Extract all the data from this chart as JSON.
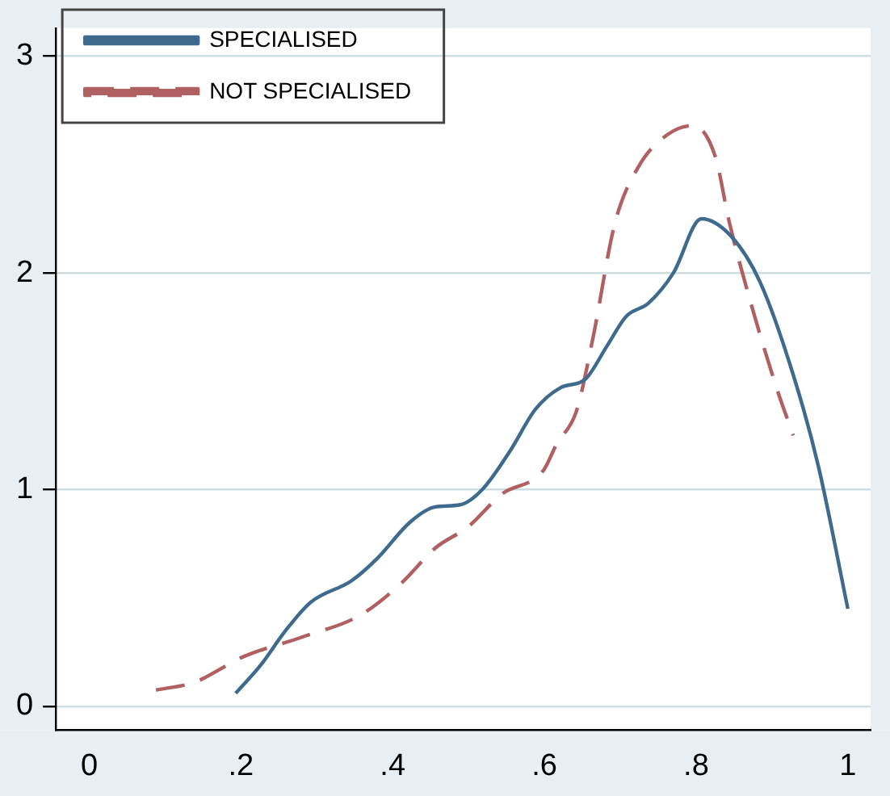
{
  "chart_data": {
    "type": "line",
    "xlim": [
      -0.044,
      1.03
    ],
    "ylim": [
      -0.11,
      3.13
    ],
    "xticks": [
      0,
      {
        "value": 0.2,
        "label": ".2"
      },
      {
        "value": 0.4,
        "label": ".4"
      },
      {
        "value": 0.6,
        "label": ".6"
      },
      {
        "value": 0.8,
        "label": ".8"
      },
      1
    ],
    "yticks": [
      0,
      1,
      2,
      3
    ],
    "grid": "y",
    "legend": "top left",
    "marker": "none",
    "series": [
      {
        "name": "SPECIALISED",
        "color": "#3e6a8e",
        "line_style": "solid",
        "x": [
          0.193,
          0.226,
          0.259,
          0.292,
          0.346,
          0.379,
          0.423,
          0.456,
          0.489,
          0.518,
          0.555,
          0.588,
          0.621,
          0.654,
          0.682,
          0.708,
          0.737,
          0.77,
          0.807,
          0.846,
          0.884,
          0.928,
          0.961,
          1.0
        ],
        "values": [
          0.06,
          0.19,
          0.35,
          0.48,
          0.58,
          0.68,
          0.85,
          0.92,
          0.93,
          1.0,
          1.18,
          1.37,
          1.47,
          1.51,
          1.66,
          1.8,
          1.86,
          2.0,
          2.25,
          2.17,
          1.96,
          1.53,
          1.11,
          0.45
        ]
      },
      {
        "name": "NOT SPECIALISED",
        "color": "#b06060",
        "line_style": "dashed",
        "x": [
          0.088,
          0.138,
          0.204,
          0.281,
          0.357,
          0.412,
          0.456,
          0.5,
          0.544,
          0.599,
          0.616,
          0.642,
          0.664,
          0.693,
          0.724,
          0.763,
          0.796,
          0.825,
          0.844,
          0.873,
          0.906,
          0.928
        ],
        "values": [
          0.075,
          0.11,
          0.23,
          0.32,
          0.42,
          0.57,
          0.73,
          0.83,
          0.98,
          1.09,
          1.21,
          1.36,
          1.7,
          2.23,
          2.49,
          2.64,
          2.68,
          2.54,
          2.23,
          1.85,
          1.47,
          1.25
        ]
      }
    ]
  }
}
